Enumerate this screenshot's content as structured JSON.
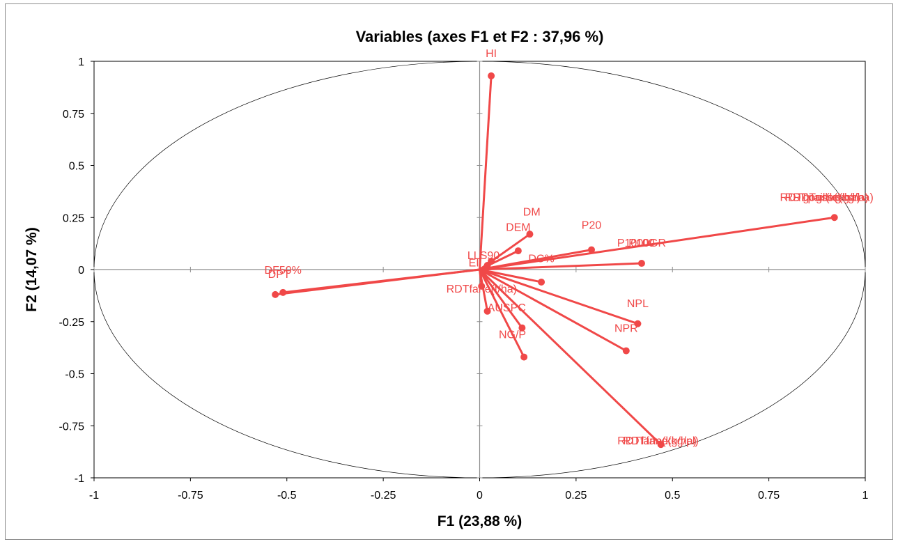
{
  "chart_data": {
    "type": "scatter",
    "title": "Variables (axes F1 et F2 : 37,96 %)",
    "xlabel": "F1 (23,88 %)",
    "ylabel": "F2 (14,07 %)",
    "xlim": [
      -1,
      1
    ],
    "ylim": [
      -1,
      1
    ],
    "xticks": [
      "-1",
      "-0.75",
      "-0.5",
      "-0.25",
      "0",
      "0.25",
      "0.5",
      "0.75",
      "1"
    ],
    "yticks": [
      "1",
      "0.75",
      "0.5",
      "0.25",
      "0",
      "-0.25",
      "-0.5",
      "-0.75",
      "-1"
    ],
    "tick_values": [
      -1,
      -0.75,
      -0.5,
      -0.25,
      0,
      0.25,
      0.5,
      0.75,
      1
    ],
    "correlation_circle": true,
    "vector_color": "#f04848",
    "variables": [
      {
        "label": "HI",
        "x": 0.03,
        "y": 0.93
      },
      {
        "label": "DM",
        "x": 0.13,
        "y": 0.17
      },
      {
        "label": "DEM",
        "x": 0.1,
        "y": 0.09
      },
      {
        "label": "P20",
        "x": 0.29,
        "y": 0.095
      },
      {
        "label": "P100",
        "x": 0.42,
        "y": 0.03
      },
      {
        "label": "RDTgr(kg/ha)",
        "x": 0.92,
        "y": 0.25
      },
      {
        "label": "LLS90",
        "x": 0.03,
        "y": 0.04
      },
      {
        "label": "EI",
        "x": 0.02,
        "y": 0.02
      },
      {
        "label": "DC%",
        "x": 0.16,
        "y": -0.06
      },
      {
        "label": "DF50%",
        "x": -0.51,
        "y": -0.11
      },
      {
        "label": "DPT",
        "x": -0.53,
        "y": -0.12
      },
      {
        "label": "RDTfane(t/ha)",
        "x": 0.005,
        "y": -0.08
      },
      {
        "label": "AUSPC",
        "x": 0.02,
        "y": -0.2
      },
      {
        "label": "NG/P",
        "x": 0.11,
        "y": -0.28
      },
      {
        "label": "",
        "x": 0.115,
        "y": -0.42
      },
      {
        "label": "NPL",
        "x": 0.41,
        "y": -0.26
      },
      {
        "label": "NPR",
        "x": 0.38,
        "y": -0.39
      },
      {
        "label": "RDTfane(kg/ha)",
        "x": 0.47,
        "y": -0.84
      }
    ],
    "point_labels": [
      {
        "text": "HI",
        "lx": 0.03,
        "ly": 1.02
      },
      {
        "text": "DM",
        "lx": 0.135,
        "ly": 0.26
      },
      {
        "text": "DEM",
        "lx": 0.1,
        "ly": 0.185
      },
      {
        "text": "P20",
        "lx": 0.29,
        "ly": 0.195
      },
      {
        "text": "P100",
        "lx": 0.42,
        "ly": 0.11
      },
      {
        "text": "P1000GR",
        "lx": 0.42,
        "ly": 0.11
      },
      {
        "text": "RDTgr(kg/ha)",
        "lx": 0.9,
        "ly": 0.33
      },
      {
        "text": "RDTpaille(kg/ha)",
        "lx": 0.9,
        "ly": 0.33
      },
      {
        "text": "RDTgousse(kg/ha)",
        "lx": 0.9,
        "ly": 0.33
      },
      {
        "text": "LLS90",
        "lx": 0.01,
        "ly": 0.05
      },
      {
        "text": "EI",
        "lx": -0.015,
        "ly": 0.015
      },
      {
        "text": "DC%",
        "lx": 0.16,
        "ly": 0.035
      },
      {
        "text": "DF50%",
        "lx": -0.51,
        "ly": -0.02
      },
      {
        "text": "DPT",
        "lx": -0.52,
        "ly": -0.04
      },
      {
        "text": "RDTfane(t/ha)",
        "lx": 0.005,
        "ly": -0.11
      },
      {
        "text": "AUSPC",
        "lx": 0.07,
        "ly": -0.2
      },
      {
        "text": "NG/P",
        "lx": 0.085,
        "ly": -0.33
      },
      {
        "text": "NPL",
        "lx": 0.41,
        "ly": -0.18
      },
      {
        "text": "NPR",
        "lx": 0.38,
        "ly": -0.3
      },
      {
        "text": "RDTfane(kg/ha)",
        "lx": 0.46,
        "ly": -0.84
      },
      {
        "text": "RDTfane(kg/pl)",
        "lx": 0.47,
        "ly": -0.84
      }
    ]
  }
}
